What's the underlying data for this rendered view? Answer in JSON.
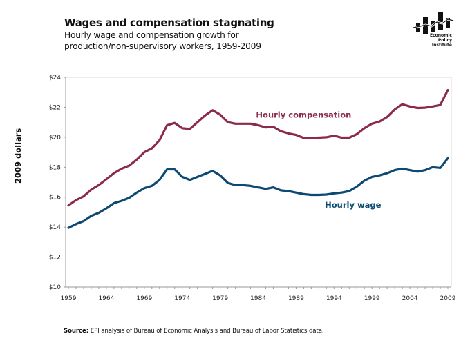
{
  "header": {
    "title": "Wages and compensation stagnating",
    "subtitle": "Hourly wage and compensation growth for production/non-supervisory workers, 1959-2009"
  },
  "logo": {
    "icon": "epi-logo-icon",
    "lines": [
      "Economic",
      "Policy",
      "Institute"
    ]
  },
  "footer": {
    "source_label": "Source:",
    "source_text": " EPI analysis of Bureau of Economic Analysis and Bureau of Labor Statistics data."
  },
  "colors": {
    "compensation": "#8b2a4b",
    "wage": "#0d4a73",
    "axis": "#999999"
  },
  "chart_data": {
    "type": "line",
    "title": "Wages and compensation stagnating",
    "subtitle": "Hourly wage and compensation growth for production/non-supervisory workers, 1959-2009",
    "xlabel": "",
    "ylabel": "2009 dollars",
    "ylim": [
      10,
      24
    ],
    "xlim": [
      1959,
      2009
    ],
    "grid": false,
    "yticks": [
      10,
      12,
      14,
      16,
      18,
      20,
      22,
      24
    ],
    "ytick_labels": [
      "$10",
      "$12",
      "$14",
      "$16",
      "$18",
      "$20",
      "$22",
      "$24"
    ],
    "xticks": [
      1959,
      1964,
      1969,
      1974,
      1979,
      1984,
      1989,
      1994,
      1999,
      2004,
      2009
    ],
    "xtick_labels": [
      "1959",
      "1964",
      "1969",
      "1974",
      "1979",
      "1984",
      "1989",
      "1994",
      "1999",
      "2004",
      "2009"
    ],
    "x": [
      1959,
      1960,
      1961,
      1962,
      1963,
      1964,
      1965,
      1966,
      1967,
      1968,
      1969,
      1970,
      1971,
      1972,
      1973,
      1974,
      1975,
      1976,
      1977,
      1978,
      1979,
      1980,
      1981,
      1982,
      1983,
      1984,
      1985,
      1986,
      1987,
      1988,
      1989,
      1990,
      1991,
      1992,
      1993,
      1994,
      1995,
      1996,
      1997,
      1998,
      1999,
      2000,
      2001,
      2002,
      2003,
      2004,
      2005,
      2006,
      2007,
      2008,
      2009
    ],
    "series": [
      {
        "name": "Hourly compensation",
        "label": "Hourly compensation",
        "values": [
          15.45,
          15.8,
          16.05,
          16.5,
          16.8,
          17.2,
          17.6,
          17.9,
          18.1,
          18.5,
          19.0,
          19.25,
          19.8,
          20.8,
          20.95,
          20.6,
          20.55,
          21.0,
          21.45,
          21.8,
          21.5,
          21.0,
          20.9,
          20.9,
          20.9,
          20.8,
          20.65,
          20.7,
          20.4,
          20.25,
          20.15,
          19.95,
          19.95,
          19.97,
          20.0,
          20.1,
          19.97,
          19.97,
          20.2,
          20.6,
          20.9,
          21.05,
          21.35,
          21.85,
          22.2,
          22.05,
          21.95,
          21.97,
          22.05,
          22.15,
          23.15
        ]
      },
      {
        "name": "Hourly wage",
        "label": "Hourly wage",
        "values": [
          13.95,
          14.2,
          14.4,
          14.75,
          14.95,
          15.25,
          15.6,
          15.75,
          15.95,
          16.3,
          16.6,
          16.75,
          17.15,
          17.85,
          17.85,
          17.35,
          17.15,
          17.35,
          17.55,
          17.75,
          17.45,
          16.95,
          16.8,
          16.8,
          16.75,
          16.65,
          16.55,
          16.65,
          16.45,
          16.4,
          16.3,
          16.2,
          16.15,
          16.15,
          16.17,
          16.25,
          16.3,
          16.4,
          16.7,
          17.1,
          17.35,
          17.45,
          17.6,
          17.8,
          17.9,
          17.8,
          17.7,
          17.8,
          18.0,
          17.95,
          18.6
        ]
      }
    ],
    "annotations": [
      {
        "text": "Hourly compensation",
        "series": "Hourly compensation",
        "at_x": 1990,
        "at_y": 21.3
      },
      {
        "text": "Hourly wage",
        "series": "Hourly wage",
        "at_x": 1996.5,
        "at_y": 15.3
      }
    ]
  }
}
